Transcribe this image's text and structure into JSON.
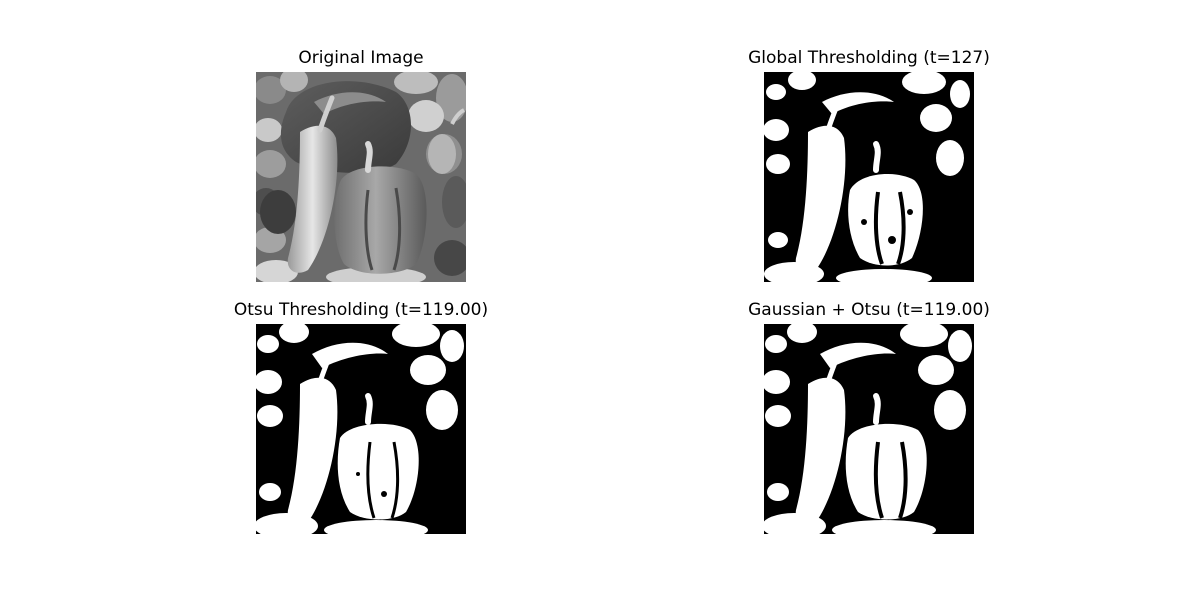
{
  "figure": {
    "panels": [
      {
        "title": "Original Image",
        "kind": "grayscale",
        "image_icon": "peppers-grayscale-image"
      },
      {
        "title": "Global Thresholding (t=127)",
        "kind": "binary",
        "image_icon": "peppers-binary-global-image"
      },
      {
        "title": "Otsu Thresholding (t=119.00)",
        "kind": "binary",
        "image_icon": "peppers-binary-otsu-image"
      },
      {
        "title": "Gaussian + Otsu (t=119.00)",
        "kind": "binary",
        "image_icon": "peppers-binary-gaussian-otsu-image"
      }
    ],
    "colors": {
      "background": "#ffffff",
      "binary_black": "#000000",
      "binary_white": "#ffffff"
    }
  }
}
